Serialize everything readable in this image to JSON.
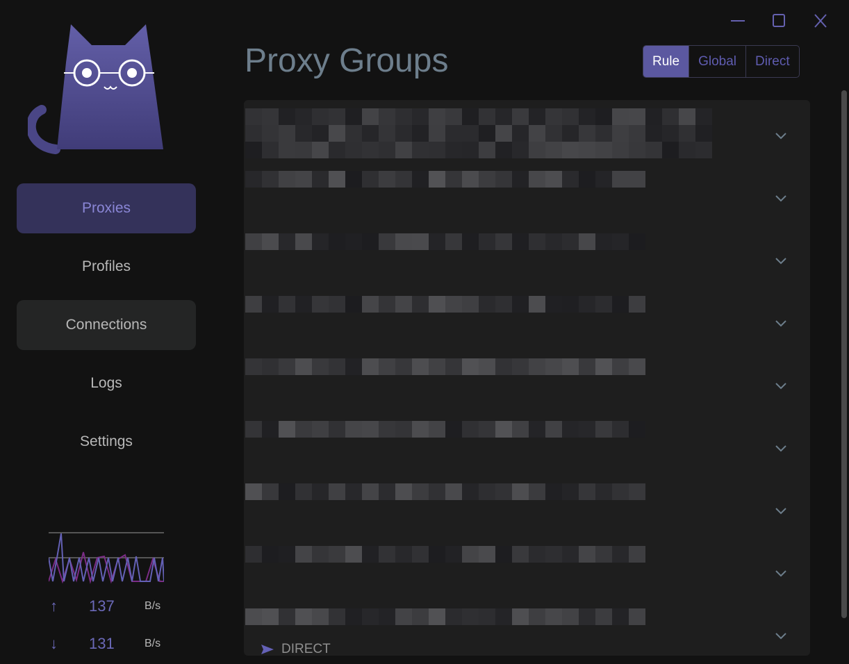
{
  "window": {
    "minimize": "minimize-icon",
    "maximize": "maximize-icon",
    "close": "close-icon"
  },
  "sidebar": {
    "items": [
      {
        "label": "Proxies",
        "state": "active"
      },
      {
        "label": "Profiles",
        "state": ""
      },
      {
        "label": "Connections",
        "state": "hover"
      },
      {
        "label": "Logs",
        "state": ""
      },
      {
        "label": "Settings",
        "state": ""
      }
    ],
    "traffic": {
      "upload": "137",
      "upload_unit": "B/s",
      "download": "131",
      "download_unit": "B/s"
    }
  },
  "header": {
    "title": "Proxy Groups"
  },
  "modes": {
    "options": [
      "Rule",
      "Global",
      "Direct"
    ],
    "selected": "Rule"
  },
  "list": {
    "row_count": 9,
    "last_row_label": "DIRECT"
  },
  "colors": {
    "accent": "#5b58a0",
    "background": "#121212",
    "panel": "#1e1e1e"
  }
}
